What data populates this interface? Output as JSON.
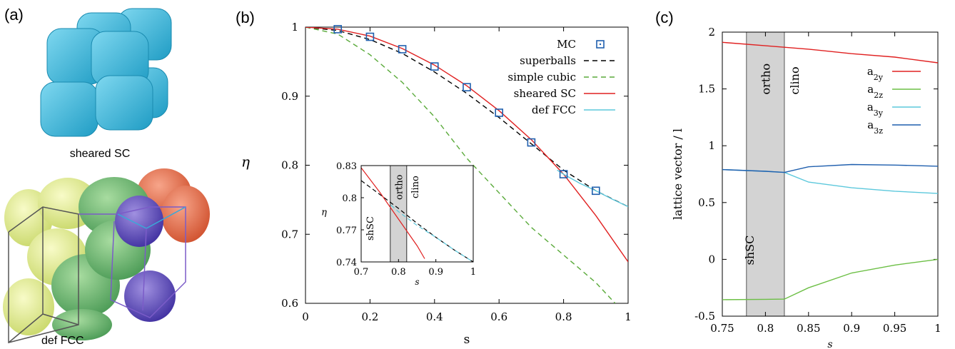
{
  "panels": {
    "a": {
      "label": "(a)",
      "caption_top": "sheared SC",
      "caption_bottom": "def FCC"
    },
    "b": {
      "label": "(b)"
    },
    "c": {
      "label": "(c)"
    }
  },
  "colors": {
    "mc": "#1f5fae",
    "superballs": "#000000",
    "simple_cubic": "#5aaa3a",
    "sheared_sc": "#e02020",
    "def_fcc": "#5cc8dc",
    "a2y": "#e02020",
    "a2z": "#6cbf45",
    "a3y": "#5cc8dc",
    "a3z": "#1f5fae",
    "band": "#d3d3d3",
    "cube": "#35b8dc"
  },
  "chart_data": [
    {
      "type": "line",
      "xlabel": "s",
      "ylabel": "η",
      "xlim": [
        0,
        1
      ],
      "ylim": [
        0.6,
        1
      ],
      "xticks": [
        "0",
        "0.2",
        "0.4",
        "0.6",
        "0.8",
        "1"
      ],
      "yticks": [
        "0.6",
        "0.7",
        "0.8",
        "0.9",
        "1"
      ],
      "legend_position": "top-right",
      "series": [
        {
          "name": "MC",
          "style": "markers",
          "x": [
            0.1,
            0.2,
            0.3,
            0.4,
            0.5,
            0.6,
            0.7,
            0.8,
            0.9
          ],
          "y": [
            0.997,
            0.986,
            0.968,
            0.943,
            0.913,
            0.876,
            0.833,
            0.787,
            0.763
          ]
        },
        {
          "name": "superballs",
          "style": "dashed",
          "x": [
            0,
            0.1,
            0.2,
            0.3,
            0.4,
            0.5,
            0.6,
            0.7,
            0.8,
            0.9,
            1.0
          ],
          "y": [
            1.0,
            0.995,
            0.982,
            0.962,
            0.935,
            0.904,
            0.869,
            0.831,
            0.793,
            0.763,
            0.74
          ]
        },
        {
          "name": "simple cubic",
          "style": "dashed",
          "x": [
            0,
            0.1,
            0.2,
            0.3,
            0.4,
            0.5,
            0.6,
            0.7,
            0.8,
            0.9,
            0.96
          ],
          "y": [
            1.0,
            0.99,
            0.96,
            0.92,
            0.87,
            0.81,
            0.76,
            0.71,
            0.67,
            0.63,
            0.6
          ]
        },
        {
          "name": "sheared SC",
          "style": "solid",
          "x": [
            0,
            0.1,
            0.2,
            0.3,
            0.4,
            0.5,
            0.6,
            0.7,
            0.8,
            0.9,
            1.0
          ],
          "y": [
            1.0,
            0.997,
            0.987,
            0.969,
            0.945,
            0.915,
            0.879,
            0.837,
            0.787,
            0.727,
            0.66
          ]
        },
        {
          "name": "def FCC",
          "style": "solid",
          "x": [
            0.78,
            0.8,
            0.85,
            0.9,
            0.95,
            1.0
          ],
          "y": [
            0.793,
            0.787,
            0.774,
            0.763,
            0.751,
            0.74
          ]
        }
      ],
      "inset": {
        "xlabel": "s",
        "ylabel": "η",
        "xlim": [
          0.7,
          1
        ],
        "ylim": [
          0.74,
          0.83
        ],
        "xticks": [
          "0.7",
          "0.8",
          "0.9",
          "1"
        ],
        "yticks": [
          "0.74",
          "0.77",
          "0.8",
          "0.83"
        ],
        "band": [
          0.778,
          0.822
        ],
        "region_labels": [
          "shSC",
          "ortho",
          "clino"
        ],
        "series": [
          {
            "name": "superballs",
            "style": "dashed",
            "x": [
              0.7,
              0.75,
              0.8,
              0.85,
              0.9,
              0.95,
              1.0
            ],
            "y": [
              0.816,
              0.803,
              0.79,
              0.776,
              0.763,
              0.751,
              0.74
            ]
          },
          {
            "name": "sheared SC",
            "style": "solid",
            "x": [
              0.7,
              0.75,
              0.8,
              0.85,
              0.87
            ],
            "y": [
              0.828,
              0.805,
              0.78,
              0.755,
              0.743
            ]
          },
          {
            "name": "def FCC",
            "style": "dashed",
            "x": [
              0.78,
              0.8,
              0.85,
              0.9,
              0.95,
              1.0
            ],
            "y": [
              0.793,
              0.787,
              0.774,
              0.763,
              0.751,
              0.74
            ]
          }
        ]
      }
    },
    {
      "type": "line",
      "xlabel": "s",
      "ylabel": "lattice vector / l",
      "xlim": [
        0.75,
        1
      ],
      "ylim": [
        -0.5,
        2
      ],
      "xticks": [
        "0.75",
        "0.8",
        "0.85",
        "0.9",
        "0.95",
        "1"
      ],
      "yticks": [
        "-0.5",
        "0",
        "0.5",
        "1",
        "1.5",
        "2"
      ],
      "band": [
        0.778,
        0.822
      ],
      "region_labels": [
        "shSC",
        "ortho",
        "clino"
      ],
      "legend_position": "top-right",
      "series": [
        {
          "name": "a",
          "sub": "2y",
          "x": [
            0.75,
            0.8,
            0.85,
            0.9,
            0.95,
            1.0
          ],
          "y": [
            1.91,
            1.88,
            1.85,
            1.81,
            1.78,
            1.73
          ]
        },
        {
          "name": "a",
          "sub": "2z",
          "x": [
            0.75,
            0.8,
            0.822,
            0.85,
            0.9,
            0.95,
            1.0
          ],
          "y": [
            -0.355,
            -0.352,
            -0.35,
            -0.25,
            -0.12,
            -0.05,
            0.0
          ]
        },
        {
          "name": "a",
          "sub": "3y",
          "x": [
            0.75,
            0.8,
            0.822,
            0.85,
            0.9,
            0.95,
            1.0
          ],
          "y": [
            0.79,
            0.775,
            0.765,
            0.68,
            0.63,
            0.6,
            0.58
          ]
        },
        {
          "name": "a",
          "sub": "3z",
          "x": [
            0.75,
            0.8,
            0.822,
            0.85,
            0.9,
            0.95,
            1.0
          ],
          "y": [
            0.79,
            0.775,
            0.765,
            0.815,
            0.835,
            0.83,
            0.82
          ]
        }
      ]
    }
  ]
}
